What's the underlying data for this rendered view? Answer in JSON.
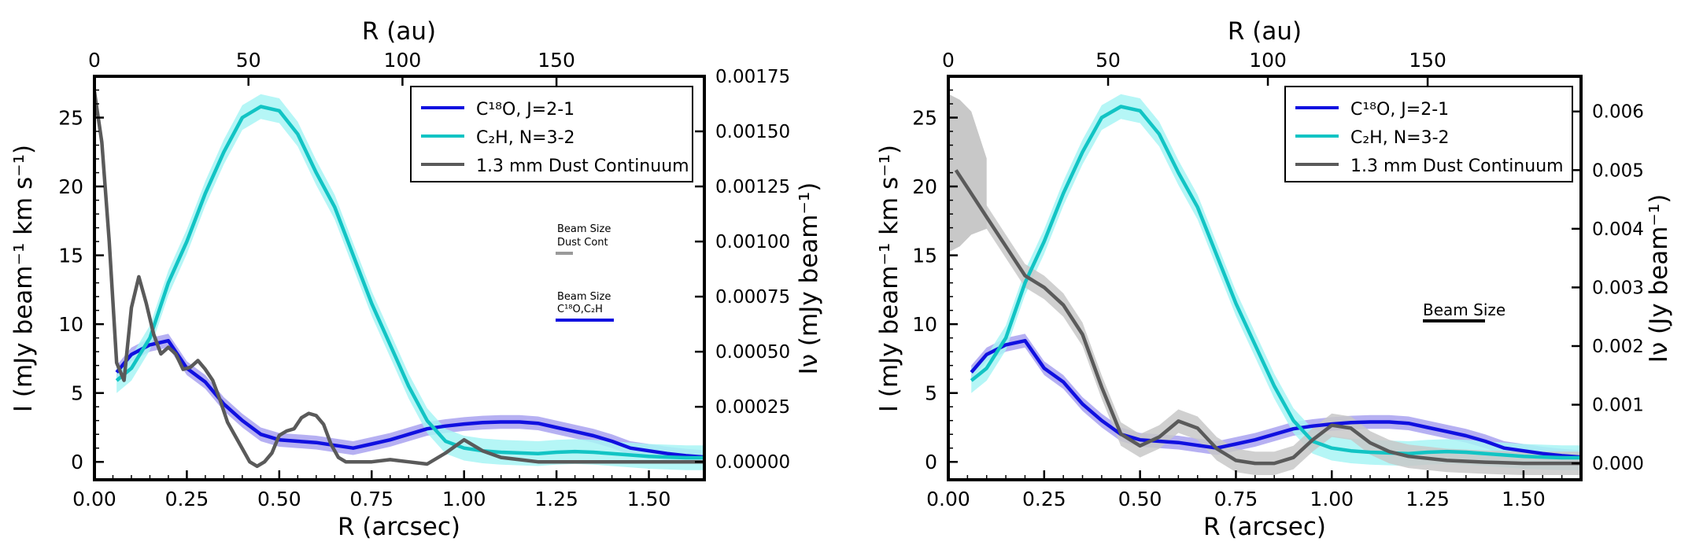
{
  "panels": [
    {
      "x_axis": {
        "label": "R (arcsec)",
        "ticks": [
          "0.00",
          "0.25",
          "0.50",
          "0.75",
          "1.00",
          "1.25",
          "1.50"
        ]
      },
      "top_axis": {
        "label": "R (au)",
        "ticks": [
          "0",
          "50",
          "100",
          "150"
        ]
      },
      "left_axis": {
        "label": "I (mJy beam⁻¹ km s⁻¹)",
        "ticks": [
          "0",
          "5",
          "10",
          "15",
          "20",
          "25"
        ]
      },
      "right_axis": {
        "label": "Iν (mJy beam⁻¹)",
        "ticks": [
          "0.00000",
          "0.00025",
          "0.00050",
          "0.00075",
          "0.00100",
          "0.00125",
          "0.00150",
          "0.00175"
        ]
      },
      "legend": [
        "C¹⁸O, J=2-1",
        "C₂H, N=3-2",
        "1.3 mm Dust Continuum"
      ],
      "beam_annotations": [
        {
          "line1": "Beam Size",
          "line2": "Dust Cont"
        },
        {
          "line1": "Beam Size",
          "line2": "C¹⁸O,C₂H"
        }
      ]
    },
    {
      "x_axis": {
        "label": "R (arcsec)",
        "ticks": [
          "0.00",
          "0.25",
          "0.50",
          "0.75",
          "1.00",
          "1.25",
          "1.50"
        ]
      },
      "top_axis": {
        "label": "R (au)",
        "ticks": [
          "0",
          "50",
          "100",
          "150"
        ]
      },
      "left_axis": {
        "label": "I (mJy beam⁻¹ km s⁻¹)",
        "ticks": [
          "0",
          "5",
          "10",
          "15",
          "20",
          "25"
        ]
      },
      "right_axis": {
        "label": "Iν (Jy beam⁻¹)",
        "ticks": [
          "0.000",
          "0.001",
          "0.002",
          "0.003",
          "0.004",
          "0.005",
          "0.006"
        ]
      },
      "legend": [
        "C¹⁸O, J=2-1",
        "C₂H, N=3-2",
        "1.3 mm Dust Continuum"
      ],
      "beam_annotations": [
        {
          "line1": "Beam Size",
          "line2": ""
        }
      ]
    }
  ],
  "colors": {
    "c18o": "#1010e0",
    "c2h": "#12c4c4",
    "dust": "#5a5a5a",
    "c18o_band": "#a9a2f0",
    "c2h_band": "#a8f5f5",
    "dust_band": "#c8c8c8"
  },
  "chart_data": [
    {
      "type": "line",
      "title": "",
      "xlabel": "R (arcsec)",
      "ylabel": "I (mJy beam⁻¹ km s⁻¹)",
      "y2label": "Iν (mJy beam⁻¹)",
      "top_xlabel": "R (au)",
      "au_per_arcsec": 120,
      "xlim": [
        0,
        1.65
      ],
      "ylim": [
        -1.3,
        28
      ],
      "y2lim": [
        -8.13e-05,
        0.00175
      ],
      "series": [
        {
          "name": "C¹⁸O, J=2-1",
          "axis": "left",
          "band": 0.5,
          "x": [
            0.06,
            0.1,
            0.15,
            0.2,
            0.25,
            0.3,
            0.35,
            0.4,
            0.45,
            0.5,
            0.55,
            0.6,
            0.65,
            0.7,
            0.75,
            0.8,
            0.85,
            0.9,
            0.95,
            1.0,
            1.05,
            1.1,
            1.15,
            1.2,
            1.25,
            1.3,
            1.35,
            1.4,
            1.45,
            1.5,
            1.55,
            1.6,
            1.65
          ],
          "y": [
            6.5,
            7.8,
            8.5,
            8.8,
            6.8,
            5.8,
            4.2,
            3.0,
            2.0,
            1.6,
            1.5,
            1.4,
            1.2,
            1.0,
            1.3,
            1.6,
            2.0,
            2.4,
            2.6,
            2.75,
            2.85,
            2.9,
            2.9,
            2.8,
            2.5,
            2.2,
            1.9,
            1.5,
            1.0,
            0.8,
            0.6,
            0.45,
            0.35
          ]
        },
        {
          "name": "C₂H, N=3-2",
          "axis": "left",
          "band": 0.9,
          "x": [
            0.06,
            0.1,
            0.15,
            0.2,
            0.25,
            0.3,
            0.35,
            0.4,
            0.45,
            0.5,
            0.55,
            0.6,
            0.65,
            0.7,
            0.75,
            0.8,
            0.85,
            0.9,
            0.95,
            1.0,
            1.05,
            1.1,
            1.15,
            1.2,
            1.25,
            1.3,
            1.35,
            1.4,
            1.45,
            1.5,
            1.55,
            1.6,
            1.65
          ],
          "y": [
            5.9,
            6.8,
            9.0,
            13.0,
            16.0,
            19.5,
            22.5,
            25.0,
            25.8,
            25.5,
            23.8,
            21.0,
            18.5,
            15.0,
            11.5,
            8.5,
            5.5,
            3.0,
            1.5,
            1.0,
            0.8,
            0.7,
            0.65,
            0.6,
            0.7,
            0.75,
            0.7,
            0.6,
            0.5,
            0.4,
            0.35,
            0.3,
            0.3
          ]
        },
        {
          "name": "1.3 mm Dust Continuum",
          "axis": "right",
          "band": 0,
          "x": [
            0,
            0.02,
            0.04,
            0.06,
            0.08,
            0.1,
            0.12,
            0.14,
            0.16,
            0.18,
            0.2,
            0.22,
            0.24,
            0.26,
            0.28,
            0.3,
            0.32,
            0.34,
            0.36,
            0.38,
            0.4,
            0.42,
            0.44,
            0.46,
            0.48,
            0.5,
            0.52,
            0.54,
            0.56,
            0.58,
            0.6,
            0.62,
            0.64,
            0.66,
            0.68,
            0.7,
            0.75,
            0.8,
            0.85,
            0.9,
            0.95,
            1.0,
            1.05,
            1.1,
            1.15,
            1.2,
            1.3,
            1.4,
            1.5,
            1.6,
            1.65
          ],
          "y": [
            0.00168,
            0.00145,
            0.001,
            0.00045,
            0.00037,
            0.0007,
            0.00084,
            0.00072,
            0.00058,
            0.00049,
            0.00052,
            0.00049,
            0.00042,
            0.00043,
            0.00046,
            0.00042,
            0.00037,
            0.00028,
            0.00018,
            0.00012,
            6e-05,
            0.0,
            -2e-05,
            0.0,
            4e-05,
            0.00012,
            0.00014,
            0.00015,
            0.0002,
            0.00022,
            0.00021,
            0.00017,
            8e-05,
            2e-05,
            0.0,
            0.0,
            0.0,
            1e-05,
            0.0,
            -1e-05,
            4e-05,
            0.0001,
            5e-05,
            2e-05,
            1e-05,
            0.0,
            0.0,
            0.0,
            0.0,
            0.0,
            0.0
          ]
        }
      ]
    },
    {
      "type": "line",
      "title": "",
      "xlabel": "R (arcsec)",
      "ylabel": "I (mJy beam⁻¹ km s⁻¹)",
      "y2label": "Iν (Jy beam⁻¹)",
      "top_xlabel": "R (au)",
      "au_per_arcsec": 120,
      "xlim": [
        0,
        1.65
      ],
      "ylim": [
        -1.3,
        28
      ],
      "y2lim": [
        -0.00028,
        0.0066
      ],
      "series": [
        {
          "name": "C¹⁸O, J=2-1",
          "axis": "left",
          "band": 0.5,
          "x": [
            0.06,
            0.1,
            0.15,
            0.2,
            0.25,
            0.3,
            0.35,
            0.4,
            0.45,
            0.5,
            0.55,
            0.6,
            0.65,
            0.7,
            0.75,
            0.8,
            0.85,
            0.9,
            0.95,
            1.0,
            1.05,
            1.1,
            1.15,
            1.2,
            1.25,
            1.3,
            1.35,
            1.4,
            1.45,
            1.5,
            1.55,
            1.6,
            1.65
          ],
          "y": [
            6.5,
            7.8,
            8.5,
            8.8,
            6.8,
            5.8,
            4.2,
            3.0,
            2.0,
            1.6,
            1.5,
            1.4,
            1.2,
            1.0,
            1.3,
            1.6,
            2.0,
            2.4,
            2.6,
            2.75,
            2.85,
            2.9,
            2.9,
            2.8,
            2.5,
            2.2,
            1.9,
            1.5,
            1.0,
            0.8,
            0.6,
            0.45,
            0.35
          ]
        },
        {
          "name": "C₂H, N=3-2",
          "axis": "left",
          "band": 0.9,
          "x": [
            0.06,
            0.1,
            0.15,
            0.2,
            0.25,
            0.3,
            0.35,
            0.4,
            0.45,
            0.5,
            0.55,
            0.6,
            0.65,
            0.7,
            0.75,
            0.8,
            0.85,
            0.9,
            0.95,
            1.0,
            1.05,
            1.1,
            1.15,
            1.2,
            1.25,
            1.3,
            1.35,
            1.4,
            1.45,
            1.5,
            1.55,
            1.6,
            1.65
          ],
          "y": [
            5.9,
            6.8,
            9.0,
            13.0,
            16.0,
            19.5,
            22.5,
            25.0,
            25.8,
            25.5,
            23.8,
            21.0,
            18.5,
            15.0,
            11.5,
            8.5,
            5.5,
            3.0,
            1.5,
            1.0,
            0.8,
            0.7,
            0.65,
            0.6,
            0.7,
            0.75,
            0.7,
            0.6,
            0.5,
            0.4,
            0.35,
            0.3,
            0.3
          ]
        },
        {
          "name": "1.3 mm Dust Continuum",
          "axis": "right",
          "band": 0.0002,
          "x": [
            0.02,
            0.05,
            0.1,
            0.15,
            0.2,
            0.25,
            0.3,
            0.35,
            0.4,
            0.45,
            0.5,
            0.55,
            0.6,
            0.65,
            0.7,
            0.75,
            0.8,
            0.85,
            0.9,
            0.95,
            1.0,
            1.05,
            1.1,
            1.15,
            1.2,
            1.3,
            1.4,
            1.5,
            1.6,
            1.65
          ],
          "y": [
            0.005,
            0.0047,
            0.0042,
            0.0037,
            0.0032,
            0.003,
            0.0027,
            0.0022,
            0.0013,
            0.0005,
            0.0003,
            0.00045,
            0.00072,
            0.0006,
            0.00025,
            5e-05,
            0.0,
            0.0,
            0.0001,
            0.0004,
            0.00065,
            0.0006,
            0.00035,
            0.0002,
            0.00012,
            5e-05,
            2e-05,
            0.0,
            0.0,
            0.0
          ]
        }
      ],
      "dust_band_custom": {
        "upper_x": [
          0.0,
          0.03,
          0.06,
          0.1
        ],
        "upper_y": [
          0.0063,
          0.0062,
          0.006,
          0.0052
        ],
        "lower_x": [
          0.0,
          0.03,
          0.06,
          0.1
        ],
        "lower_y": [
          0.0036,
          0.0037,
          0.0039,
          0.004
        ]
      }
    }
  ]
}
